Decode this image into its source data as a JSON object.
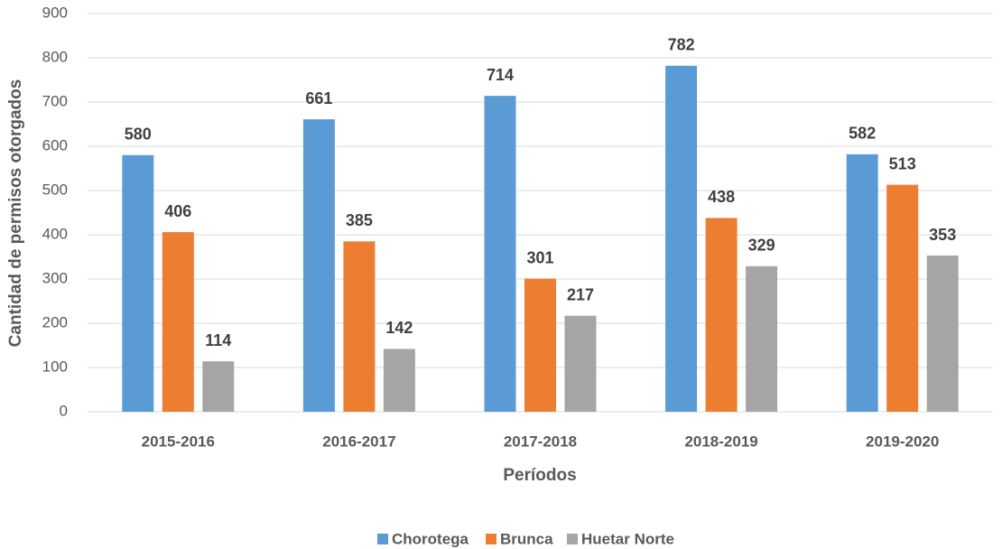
{
  "chart_data": {
    "type": "bar",
    "y_label": "Cantidad de permisos otorgados",
    "x_label": "Períodos",
    "categories": [
      "2015-2016",
      "2016-2017",
      "2017-2018",
      "2018-2019",
      "2019-2020"
    ],
    "series": [
      {
        "name": "Chorotega",
        "color": "#5b9bd5",
        "values": [
          580,
          661,
          714,
          782,
          582
        ]
      },
      {
        "name": "Brunca",
        "color": "#ed7d31",
        "values": [
          406,
          385,
          301,
          438,
          513
        ]
      },
      {
        "name": "Huetar Norte",
        "color": "#a5a5a5",
        "values": [
          114,
          142,
          217,
          329,
          353
        ]
      }
    ],
    "ylim": [
      0,
      900
    ],
    "yticks": [
      0,
      100,
      200,
      300,
      400,
      500,
      600,
      700,
      800,
      900
    ],
    "grid": true,
    "legend": "bottom"
  }
}
